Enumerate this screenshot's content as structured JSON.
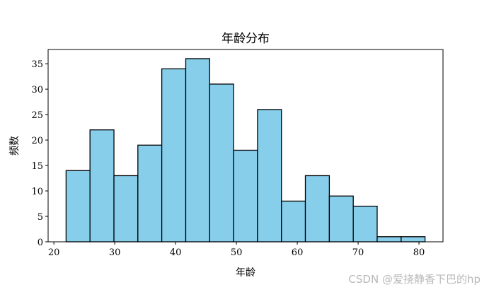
{
  "chart_data": {
    "type": "bar",
    "title": "年龄分布",
    "xlabel": "年龄",
    "ylabel": "频数",
    "bin_edges": [
      22,
      25.93,
      29.87,
      33.8,
      37.73,
      41.67,
      45.6,
      49.53,
      53.47,
      57.4,
      61.33,
      65.27,
      69.2,
      73.13,
      77.07,
      81
    ],
    "values": [
      14,
      22,
      13,
      19,
      34,
      36,
      31,
      18,
      26,
      8,
      13,
      9,
      7,
      1,
      1
    ],
    "xlim": [
      19.05,
      83.95
    ],
    "ylim": [
      0,
      37.8
    ],
    "xticks": [
      20,
      30,
      40,
      50,
      60,
      70,
      80
    ],
    "yticks": [
      0,
      5,
      10,
      15,
      20,
      25,
      30,
      35
    ],
    "grid": false,
    "bar_color": "#87CEEB",
    "edge_color": "#000000"
  },
  "watermark": "CSDN @爱挠静香下巴的hp"
}
